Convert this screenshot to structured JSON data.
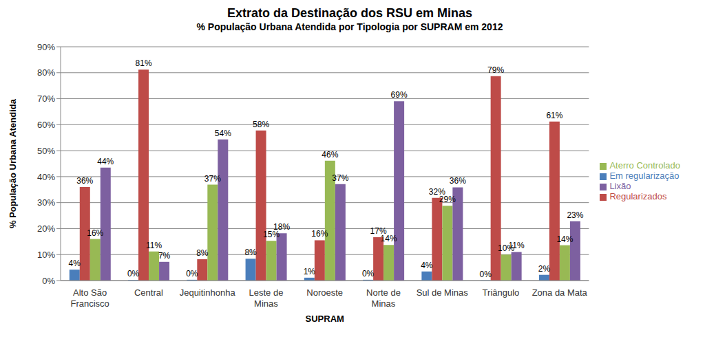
{
  "chart_data": {
    "type": "bar",
    "title": "Extrato da Destinação dos RSU em Minas",
    "subtitle": "% População Urbana Atendida por Tipologia por SUPRAM em 2012",
    "x_label": "SUPRAM",
    "y_label": "% População Urbana Atendida",
    "categories": [
      "Alto São Francisco",
      "Central",
      "Jequitinhonha",
      "Leste de Minas",
      "Noroeste",
      "Norte de Minas",
      "Sul de Minas",
      "Triângulo",
      "Zona da Mata"
    ],
    "series": [
      {
        "name": "Em regularização",
        "color": "#4a7ebb",
        "values": [
          4.2,
          0.2,
          0.3,
          8.4,
          1.1,
          0.3,
          3.5,
          0.1,
          2.2
        ],
        "value_labels": [
          "4%",
          "0%",
          "0%",
          "8%",
          "1%",
          "0%",
          "4%",
          "0%",
          "2%"
        ]
      },
      {
        "name": "Regularizados",
        "color": "#be4b48",
        "values": [
          36,
          81.2,
          8.2,
          57.8,
          15.5,
          16.7,
          31.8,
          78.7,
          61.2
        ],
        "value_labels": [
          "36%",
          "81%",
          "8%",
          "58%",
          "16%",
          "17%",
          "32%",
          "79%",
          "61%"
        ]
      },
      {
        "name": "Aterro Controlado",
        "color": "#98b954",
        "values": [
          16,
          11.2,
          36.9,
          15.3,
          46.1,
          13.7,
          28.8,
          10,
          13.6
        ],
        "value_labels": [
          "16%",
          "11%",
          "37%",
          "15%",
          "46%",
          "14%",
          "29%",
          "10%",
          "14%"
        ]
      },
      {
        "name": "Lixão",
        "color": "#7d60a0",
        "values": [
          43.5,
          7.2,
          54.3,
          18.2,
          37.1,
          69,
          35.9,
          11,
          22.8
        ],
        "value_labels": [
          "44%",
          "7%",
          "54%",
          "18%",
          "37%",
          "69%",
          "36%",
          "11%",
          "23%"
        ]
      }
    ],
    "ylim": [
      0,
      90
    ],
    "yticks": [
      {
        "value": 0,
        "label": "0%"
      },
      {
        "value": 10,
        "label": "10%"
      },
      {
        "value": 20,
        "label": "20%"
      },
      {
        "value": 30,
        "label": "30%"
      },
      {
        "value": 40,
        "label": "40%"
      },
      {
        "value": 50,
        "label": "50%"
      },
      {
        "value": 60,
        "label": "60%"
      },
      {
        "value": 70,
        "label": "70%"
      },
      {
        "value": 80,
        "label": "80%"
      },
      {
        "value": 90,
        "label": "90%"
      }
    ],
    "grid": true,
    "legend": "right",
    "data_labels": true
  }
}
